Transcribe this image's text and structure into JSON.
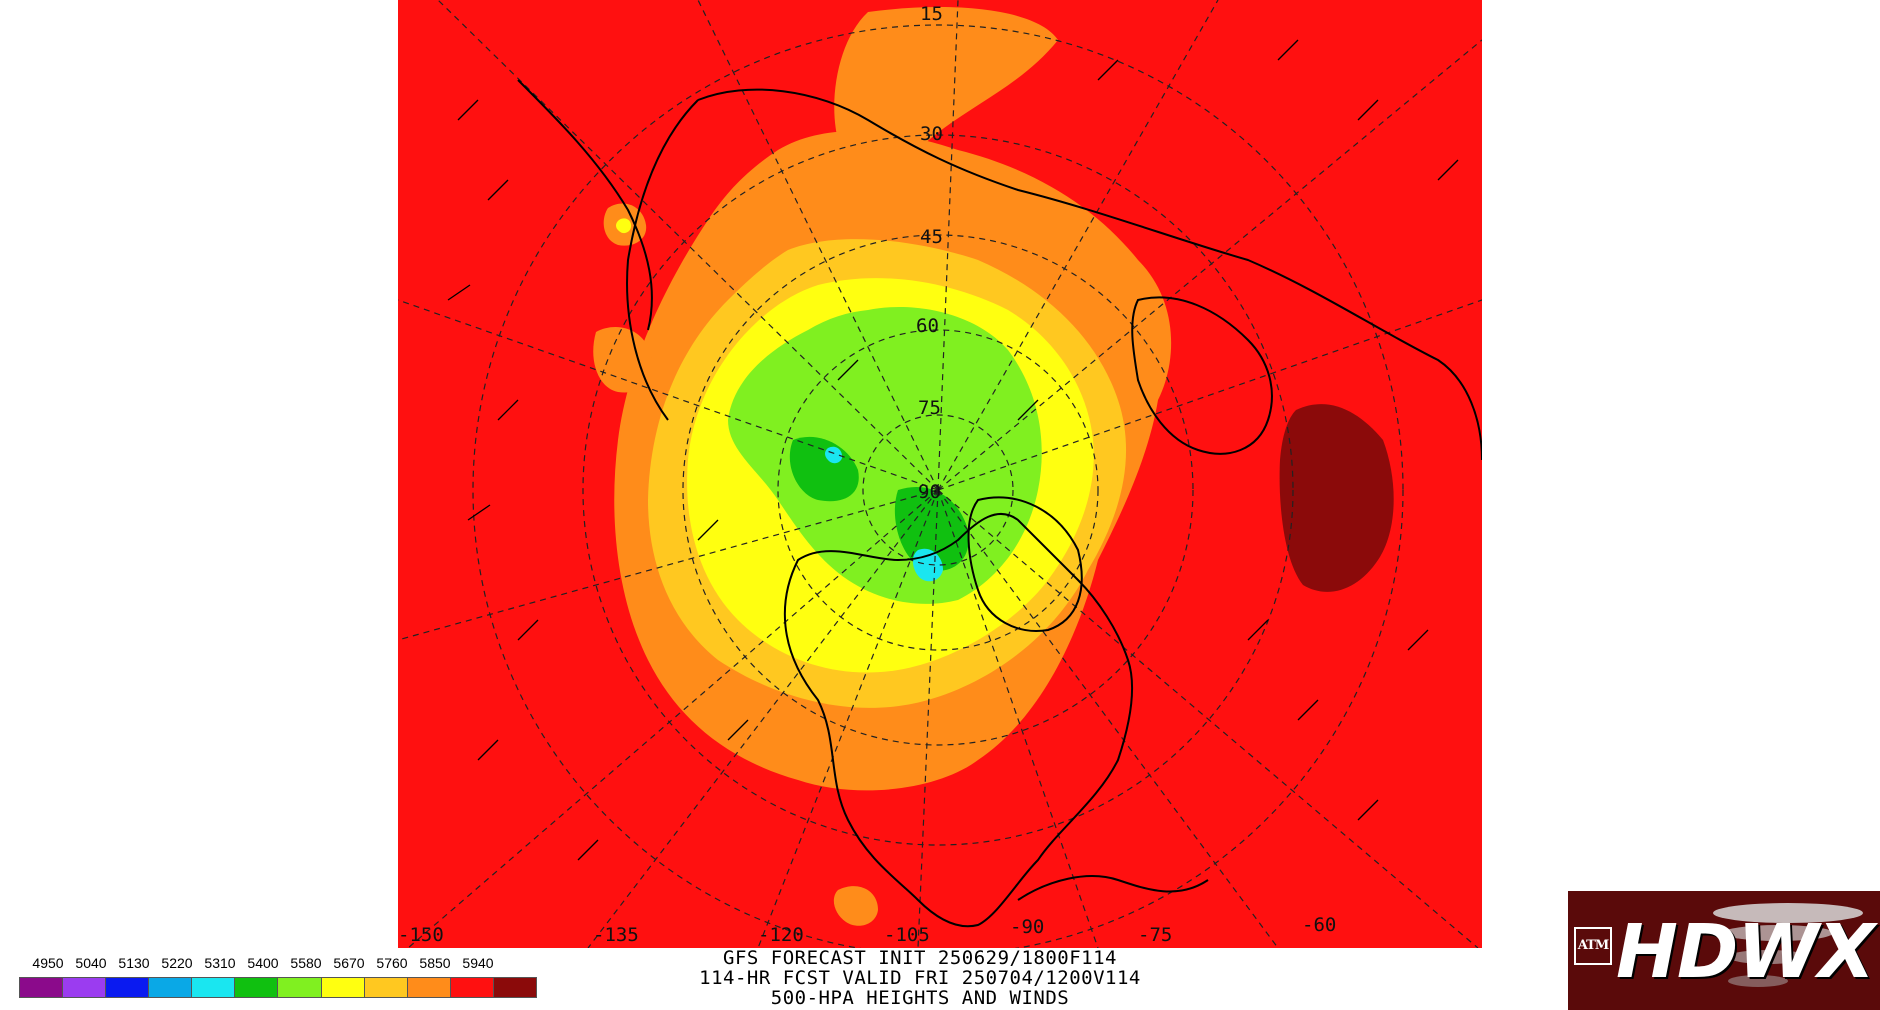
{
  "map": {
    "projection": "north-polar-stereographic",
    "background_color": "#ff1010",
    "longitude_labels": [
      "-150",
      "-135",
      "-120",
      "-105",
      "-90",
      "-75",
      "-60"
    ],
    "latitude_labels": [
      "15",
      "30",
      "45",
      "60",
      "75",
      "90"
    ],
    "features": [
      "continent-outlines",
      "country-borders",
      "us-state-borders",
      "wind-barbs",
      "lat-lon-grid"
    ]
  },
  "title": {
    "line1": "GFS FORECAST INIT 250629/1800F114",
    "line2": "114-HR FCST VALID FRI 250704/1200V114",
    "line3": "500-HPA HEIGHTS AND WINDS"
  },
  "legend": {
    "labels": [
      "4950",
      "5040",
      "5130",
      "5220",
      "5310",
      "5400",
      "5580",
      "5670",
      "5760",
      "5850",
      "5940"
    ],
    "colors": [
      "#8b0a8b",
      "#9b3cf0",
      "#0a1af0",
      "#0aa8e6",
      "#1ae6f0",
      "#10c010",
      "#80f020",
      "#ffff10",
      "#ffc820",
      "#ff8c1a",
      "#ff1010",
      "#8b0a0a"
    ]
  },
  "logo": {
    "seal": "ATM",
    "text": "HDWX",
    "background_color": "#5a0a0a"
  }
}
